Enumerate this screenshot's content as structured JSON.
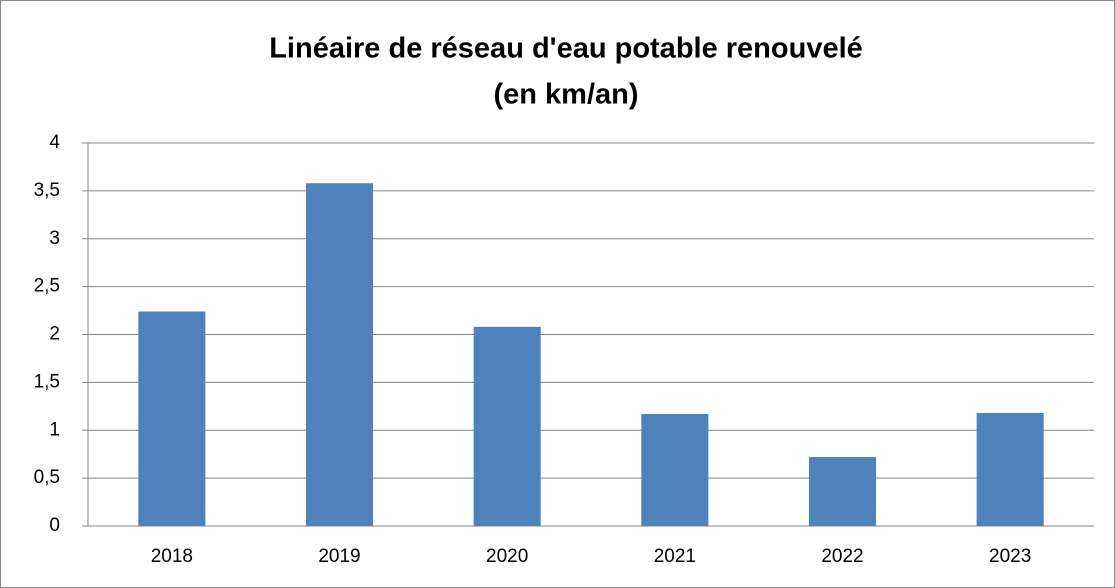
{
  "chart_data": {
    "type": "bar",
    "title": [
      "Linéaire de réseau d'eau potable renouvelé",
      "(en km/an)"
    ],
    "categories": [
      "2018",
      "2019",
      "2020",
      "2021",
      "2022",
      "2023"
    ],
    "values": [
      2.24,
      3.58,
      2.08,
      1.17,
      0.72,
      1.18
    ],
    "color": "#4f81bd",
    "ylim": [
      0,
      4
    ],
    "yticks": [
      0,
      {
        "value": 0.5,
        "label": "0,5"
      },
      1,
      {
        "value": 1.5,
        "label": "1,5"
      },
      2,
      {
        "value": 2.5,
        "label": "2,5"
      },
      3,
      {
        "value": 3.5,
        "label": "3,5"
      },
      4
    ],
    "grid": true
  }
}
